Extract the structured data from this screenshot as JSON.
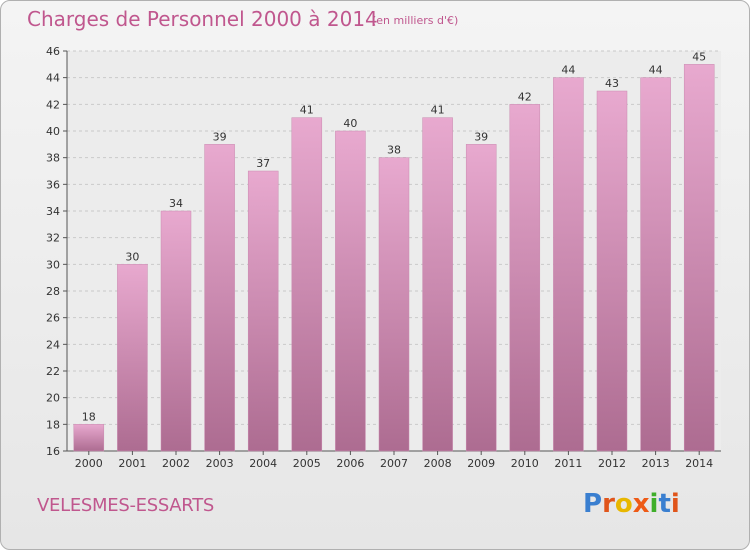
{
  "title": "Charges de Personnel 2000 à 2014",
  "subtitle": "(en milliers d'€)",
  "commune": "VELESMES-ESSARTS",
  "logo": {
    "text": "Proxiti",
    "letter_colors": [
      "#3a7fd0",
      "#e0551b",
      "#e8b700",
      "#ee5a16",
      "#3fae2a",
      "#3a7fd0",
      "#e0551b"
    ]
  },
  "colors": {
    "bar_top": "#e8a9cf",
    "bar_bottom": "#ad6c91",
    "accent": "#c0578e",
    "grid": "#c9c9c9"
  },
  "chart_data": {
    "type": "bar",
    "categories": [
      "2000",
      "2001",
      "2002",
      "2003",
      "2004",
      "2005",
      "2006",
      "2007",
      "2008",
      "2009",
      "2010",
      "2011",
      "2012",
      "2013",
      "2014"
    ],
    "values": [
      18,
      30,
      34,
      39,
      37,
      41,
      40,
      38,
      41,
      39,
      42,
      44,
      43,
      44,
      45
    ],
    "ylim": [
      16,
      46
    ],
    "yticks": [
      16,
      18,
      20,
      22,
      24,
      26,
      28,
      30,
      32,
      34,
      36,
      38,
      40,
      42,
      44,
      46
    ],
    "grid": true,
    "data_labels": true
  }
}
